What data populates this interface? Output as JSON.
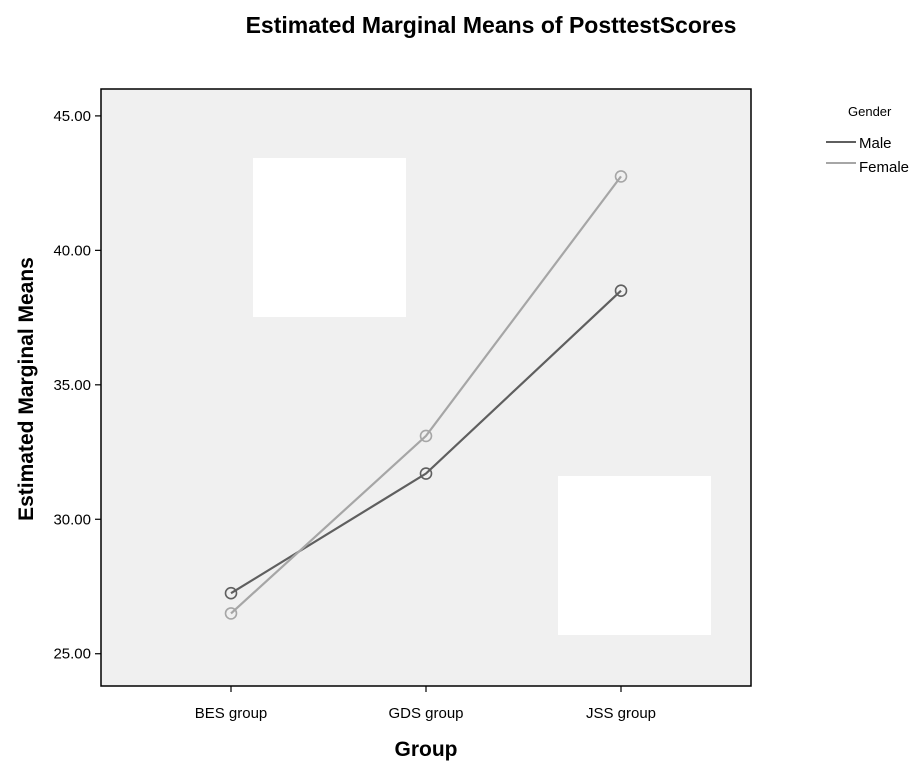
{
  "chart_data": {
    "type": "line",
    "title": "Estimated Marginal Means of PosttestScores",
    "xlabel": "Group",
    "ylabel": "Estimated Marginal Means",
    "categories": [
      "BES group",
      "GDS group",
      "JSS group"
    ],
    "ylim": [
      23.8,
      46.0
    ],
    "yticks": [
      25.0,
      30.0,
      35.0,
      40.0,
      45.0
    ],
    "ytick_labels": [
      "25.00",
      "30.00",
      "35.00",
      "40.00",
      "45.00"
    ],
    "grid": false,
    "legend": {
      "title": "Gender",
      "position": "outside-top-right"
    },
    "series": [
      {
        "name": "Male",
        "values": [
          27.25,
          31.7,
          38.5
        ],
        "color": "#5f5f5f"
      },
      {
        "name": "Female",
        "values": [
          26.5,
          33.1,
          42.75
        ],
        "color": "#a6a6a6"
      }
    ],
    "plot_background": "#f0f0f0"
  }
}
